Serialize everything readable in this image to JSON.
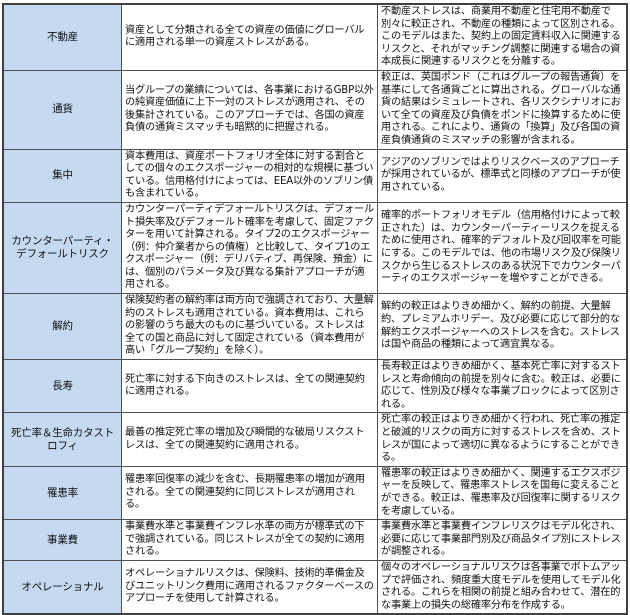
{
  "colors": {
    "label_bg": "#c5d9f1",
    "border": "#505050"
  },
  "rows": [
    {
      "label": "不動産",
      "standard": "資産として分類される全ての資産の価値にグローバルに適用される単一の資産ストレスがある。",
      "internal": "不動産ストレスは、商業用不動産と住宅用不動産で別々に較正され、不動産の種類によって区別される。このモデルはまた、契約上の固定賃料収入に関連するリスクと、それがマッチング調整に関連する場合の資本成長に関連するリスクとを分離する。"
    },
    {
      "label": "通貨",
      "standard": "当グループの業績については、各事業におけるGBP以外の純資産価値に上下一対のストレスが適用され、その後集計されている。このアプローチでは、各国の資産負債の通貨ミスマッチも暗黙的に把握される。",
      "internal": "較正は、英国ポンド（これはグループの報告通貨）を基準にして各通貨ごとに算出される。グローバルな通貨の結果はシミュレートされ、各リスクシナリオにおいて全ての資産及び負債をポンドに換算するために使用される。これにより、通貨の「換算」及び各国の資産負債通貨のミスマッチの影響が含まれる。"
    },
    {
      "label": "集中",
      "standard": "資本費用は、資産ポートフォリオ全体に対する割合としての個々のエクスポージャーの相対的な規模に基づいている。信用格付けによっては、EEA以外のソブリン債も含まれている。",
      "internal": "アジアのソブリンではよりリスクベースのアプローチが採用されているが、標準式と同様のアプローチが使用されている。"
    },
    {
      "label": "カウンターパーティ・デフォールトリスク",
      "standard": "カウンターパーティデフォールトリスクは、デフォールト損失率及びデフォールト確率を考慮して、固定ファクターを用いて計算される。タイプ2のエクスポージャー（例：仲介業者からの債権）と比較して、タイプ1のエクスポージャー（例：デリバティブ、再保険、預金）には、個別のパラメータ及び異なる集計アプローチが適用される。",
      "internal": "確率的ポートフォリオモデル（信用格付けによって較正された）は、カウンターパーティーリスクを捉えるために使用され、確率的デフォルト及び回収率を可能にする。このモデルでは、他の市場リスク及び保険リスクから生じるストレスのある状況下でカウンターパーティのエクスポージャーを増やすことができる。"
    },
    {
      "label": "解約",
      "standard": "保険契約者の解約率は両方向で強調されており、大量解約のストレスも適用されている。資本費用は、これらの影響のうち最大のものに基づいている。ストレスは全ての国と商品に対して固定されている（資本費用が高い「グループ契約」を除く）。",
      "internal": "解約の較正はよりきめ細かく、解約の前提、大量解約、プレミアムホリデー、及び必要に応じて部分的な解約エクスポージャーへのストレスを含む。ストレスは国や商品の種類によって適宜異なる。"
    },
    {
      "label": "長寿",
      "standard": "死亡率に対する下向きのストレスは、全ての関連契約に適用される。",
      "internal": "長寿較正はよりきめ細かく、基本死亡率に対するストレスと寿命傾向の前提を別々に含む。較正は、必要に応じて、性別及び様々な事業ブロックによって区別される。"
    },
    {
      "label": "死亡率＆生命カタストロフィ",
      "standard": "最善の推定死亡率の増加及び瞬間的な破局リスクストレスは、全ての関連契約に適用される。",
      "internal": "死亡率の較正はよりきめ細かく行われ、死亡率の推定と破滅的リスクの両方に対するストレスを含め、ストレスが国によって適切に異なるようにすることができる。"
    },
    {
      "label": "罹患率",
      "standard": "罹患率回復率の減少を含む、長期罹患率の増加が適用される。全ての関連契約に同じストレスが適用される。",
      "internal": "罹患率の較正はよりきめ細かく、関連するエクスポジャーを反映して、罹患率ストレスを国毎に変えることができる。較正は、罹患率及び回復率に関するリスクを考慮している。"
    },
    {
      "label": "事業費",
      "standard": "事業費水準と事業費インフレ水準の両方が標準式の下で強調されている。同じストレスが全ての契約に適用される。",
      "internal": "事業費水準と事業費インフレリスクはモデル化され、必要に応じて事業部門別及び商品タイプ別にストレスが調整される。"
    },
    {
      "label": "オペレーショナル",
      "standard": "オペレーショナルリスクは、保険料、技術的準備金及びユニットリンク費用に適用されるファクターベースのアプローチを使用して計算される。",
      "internal": "個々のオペレーショナルリスクは各事業でボトムアップで評価され、頻度重大度モデルを使用してモデル化される。これらを相関の前提と組み合わせて、潜在的な事業上の損失の総確率分布を作成する。"
    }
  ]
}
